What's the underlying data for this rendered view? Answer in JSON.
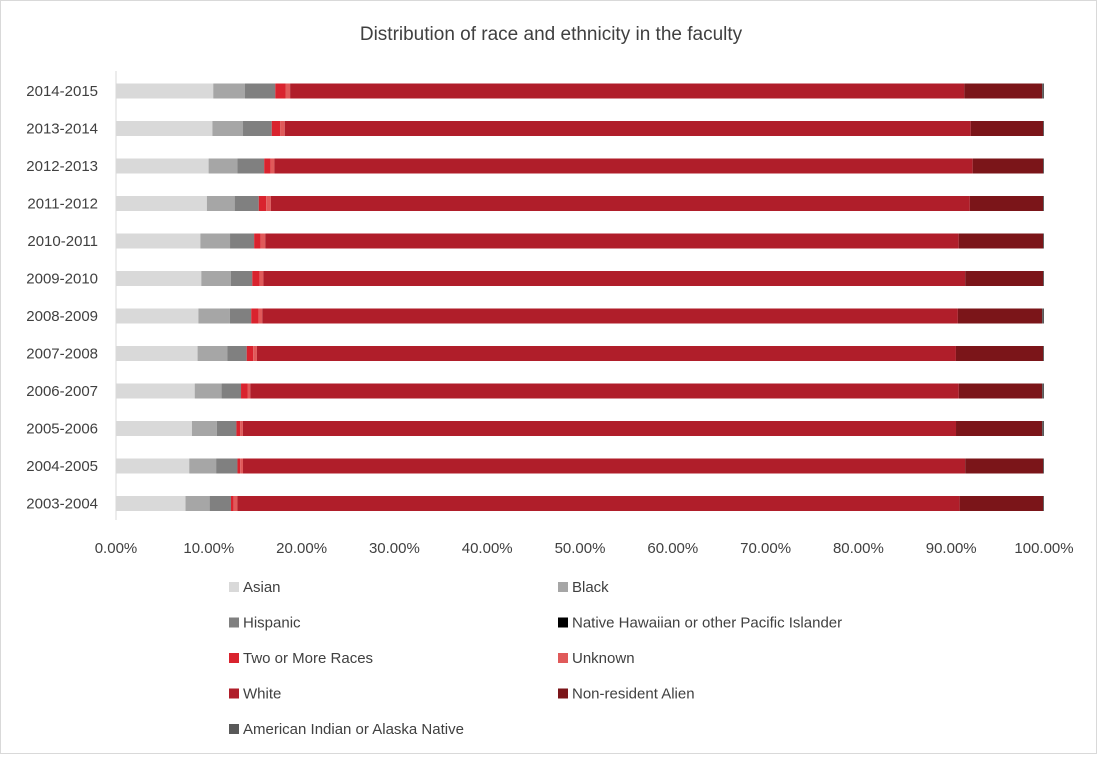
{
  "chart_data": {
    "type": "bar",
    "orientation": "horizontal",
    "stacked": "percent",
    "title": "Distribution of race and ethnicity in the faculty",
    "xlabel": "",
    "ylabel": "",
    "xlim": [
      0,
      100
    ],
    "x_ticks": [
      "0.00%",
      "10.00%",
      "20.00%",
      "30.00%",
      "40.00%",
      "50.00%",
      "60.00%",
      "70.00%",
      "80.00%",
      "90.00%",
      "100.00%"
    ],
    "grid": false,
    "legend_position": "bottom",
    "categories": [
      "2014-2015",
      "2013-2014",
      "2012-2013",
      "2011-2012",
      "2010-2011",
      "2009-2010",
      "2008-2009",
      "2007-2008",
      "2006-2007",
      "2005-2006",
      "2004-2005",
      "2003-2004"
    ],
    "series": [
      {
        "name": "Asian",
        "color": "#d9d9d9",
        "values": [
          10.5,
          10.4,
          10.0,
          9.8,
          9.1,
          9.2,
          8.9,
          8.8,
          8.5,
          8.2,
          7.9,
          7.5
        ]
      },
      {
        "name": "Black",
        "color": "#a6a6a6",
        "values": [
          3.4,
          3.3,
          3.1,
          3.0,
          3.2,
          3.2,
          3.4,
          3.2,
          2.9,
          2.7,
          2.9,
          2.6
        ]
      },
      {
        "name": "Hispanic",
        "color": "#808080",
        "values": [
          3.3,
          3.1,
          2.9,
          2.6,
          2.6,
          2.3,
          2.3,
          2.1,
          2.1,
          2.1,
          2.3,
          2.3
        ]
      },
      {
        "name": "Native Hawaiian or other Pacific Islander",
        "color": "#000000",
        "values": [
          0,
          0,
          0,
          0,
          0,
          0,
          0,
          0,
          0,
          0,
          0,
          0
        ]
      },
      {
        "name": "Two or More Races",
        "color": "#d9232e",
        "values": [
          1.1,
          0.9,
          0.7,
          0.8,
          0.7,
          0.8,
          0.8,
          0.7,
          0.7,
          0.4,
          0.3,
          0.3
        ]
      },
      {
        "name": "Unknown",
        "color": "#e05a5a",
        "values": [
          0.5,
          0.5,
          0.4,
          0.5,
          0.5,
          0.4,
          0.4,
          0.4,
          0.3,
          0.3,
          0.3,
          0.4
        ]
      },
      {
        "name": "White",
        "color": "#b01e2a",
        "values": [
          72.8,
          74.0,
          75.4,
          75.4,
          74.8,
          75.7,
          75.1,
          75.4,
          76.5,
          77.0,
          77.9,
          77.9
        ]
      },
      {
        "name": "Non-resident Alien",
        "color": "#7b1519",
        "values": [
          8.4,
          7.8,
          7.6,
          7.9,
          9.1,
          8.4,
          9.1,
          9.4,
          9.0,
          9.3,
          8.4,
          9.0
        ]
      },
      {
        "name": "American Indian or Alaska Native",
        "color": "#595959",
        "values": [
          0.2,
          0.1,
          0.1,
          0.1,
          0.1,
          0.1,
          0.2,
          0.1,
          0.2,
          0.2,
          0.1,
          0.1
        ]
      }
    ]
  }
}
